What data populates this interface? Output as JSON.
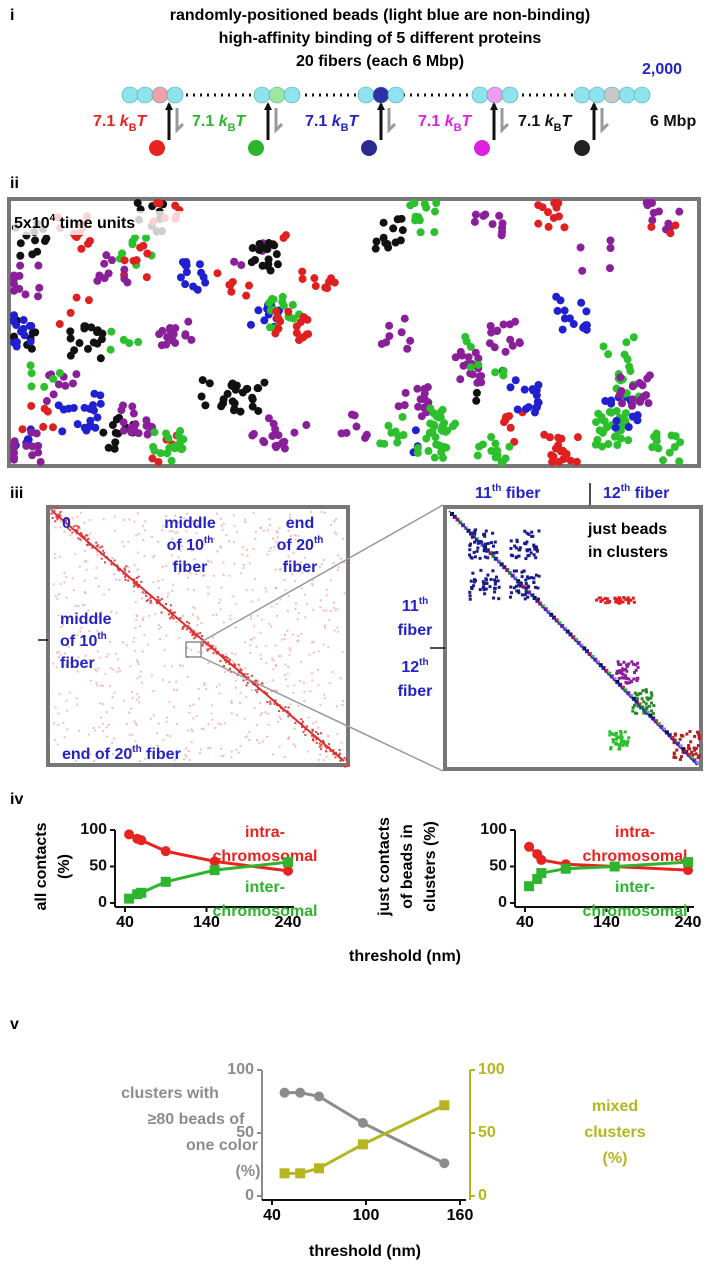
{
  "panels": {
    "i": {
      "letter": "i",
      "title_lines": [
        "randomly-positioned beads (light blue are non-binding)",
        "high-affinity binding of 5 different proteins",
        "20 fibers (each 6 Mbp)"
      ],
      "bead_count": "2,000",
      "energies": [
        {
          "color": "#e8231f",
          "lines": [
            [
              "7.1 ",
              {
                "it": "k"
              },
              {
                "sub": "B"
              },
              {
                "it": "T"
              }
            ]
          ]
        },
        {
          "color": "#2db52d",
          "lines": [
            [
              "7.1 ",
              {
                "it": "k"
              },
              {
                "sub": "B"
              },
              {
                "it": "T"
              }
            ]
          ]
        },
        {
          "color": "#2323c8",
          "lines": [
            [
              "7.1 ",
              {
                "it": "k"
              },
              {
                "sub": "B"
              },
              {
                "it": "T"
              }
            ]
          ]
        },
        {
          "color": "#e020e0",
          "lines": [
            [
              "7.1 ",
              {
                "it": "k"
              },
              {
                "sub": "B"
              },
              {
                "it": "T"
              }
            ]
          ]
        },
        {
          "color": "#111111",
          "lines": [
            [
              "7.1 ",
              {
                "it": "k"
              },
              {
                "sub": "B"
              },
              {
                "it": "T"
              }
            ]
          ]
        }
      ],
      "fiber_length": "6 Mbp"
    },
    "ii": {
      "letter": "ii",
      "time_label": [
        [
          "5x10",
          {
            "sup": "4"
          },
          " time units"
        ]
      ]
    },
    "iii": {
      "letter": "iii",
      "map_labels": {
        "origin": [
          [
            "0"
          ]
        ],
        "top_middle": [
          [
            "middle"
          ],
          [
            "of 10",
            {
              "sup": "th"
            }
          ],
          [
            "fiber"
          ]
        ],
        "top_end": [
          [
            "end"
          ],
          [
            "of 20",
            {
              "sup": "th"
            }
          ],
          [
            "fiber"
          ]
        ],
        "left_middle": [
          [
            "middle"
          ],
          [
            "of 10",
            {
              "sup": "th"
            }
          ],
          [
            "fiber"
          ]
        ],
        "left_end": [
          [
            "end of 20",
            {
              "sup": "th"
            },
            " fiber"
          ]
        ]
      },
      "zoom_labels": {
        "top_11": [
          [
            "11",
            {
              "sup": "th"
            },
            " fiber"
          ]
        ],
        "top_12": [
          [
            "12",
            {
              "sup": "th"
            },
            " fiber"
          ]
        ],
        "left_11": [
          [
            "11",
            {
              "sup": "th"
            }
          ],
          [
            "fiber"
          ]
        ],
        "left_12": [
          [
            "12",
            {
              "sup": "th"
            }
          ],
          [
            "fiber"
          ]
        ],
        "note": [
          [
            "just beads"
          ],
          [
            "in clusters"
          ]
        ]
      }
    },
    "iv": {
      "letter": "iv",
      "x_label": "threshold (nm)"
    },
    "v": {
      "letter": "v",
      "x_label": "threshold (nm)"
    }
  },
  "chart_data": [
    {
      "type": "line",
      "ylabel_lines": [
        "all contacts",
        "(%)"
      ],
      "x": [
        45,
        55,
        60,
        90,
        150,
        240
      ],
      "xlim": [
        40,
        240
      ],
      "xticks": [
        40,
        140,
        240
      ],
      "ylim": [
        0,
        100
      ],
      "yticks": [
        0,
        50,
        100
      ],
      "series": [
        {
          "label_lines": [
            "intra-",
            "chromosomal"
          ],
          "color": "#e8231f",
          "marker": "circle",
          "values": [
            94,
            88,
            86,
            71,
            57,
            44
          ]
        },
        {
          "label_lines": [
            "inter-",
            "chromosomal"
          ],
          "color": "#2db52d",
          "marker": "square",
          "values": [
            6,
            12,
            14,
            29,
            45,
            56
          ]
        }
      ]
    },
    {
      "type": "line",
      "ylabel_lines": [
        "just contacts",
        "of beads in",
        "clusters (%)"
      ],
      "x": [
        45,
        55,
        60,
        90,
        150,
        240
      ],
      "xlim": [
        40,
        240
      ],
      "xticks": [
        40,
        140,
        240
      ],
      "ylim": [
        0,
        100
      ],
      "yticks": [
        0,
        50,
        100
      ],
      "series": [
        {
          "label_lines": [
            "intra-",
            "chromosomal"
          ],
          "color": "#e8231f",
          "marker": "circle",
          "values": [
            77,
            67,
            59,
            53,
            50,
            45
          ]
        },
        {
          "label_lines": [
            "inter-",
            "chromosomal"
          ],
          "color": "#2db52d",
          "marker": "square",
          "values": [
            23,
            33,
            41,
            47,
            50,
            56
          ]
        }
      ]
    },
    {
      "type": "line",
      "ylabel_lines": [
        "clusters with",
        "≥80 beads of",
        "one color",
        "(%)"
      ],
      "y2label_lines": [
        "mixed",
        "clusters",
        "(%)"
      ],
      "x": [
        48,
        58,
        70,
        98,
        150
      ],
      "xlim": [
        40,
        160
      ],
      "xticks": [
        40,
        100,
        160
      ],
      "ylim": [
        0,
        100
      ],
      "yticks": [
        0,
        50,
        100
      ],
      "y2lim": [
        0,
        100
      ],
      "y2ticks": [
        0,
        50,
        100
      ],
      "ycolor": "#8c8c8c",
      "y2color": "#b5b520",
      "series": [
        {
          "color": "#8c8c8c",
          "marker": "circle",
          "values": [
            82,
            82,
            79,
            58,
            26
          ]
        },
        {
          "color": "#b5b520",
          "marker": "square",
          "axis": "y2",
          "values": [
            18,
            18,
            22,
            41,
            72
          ]
        }
      ]
    }
  ]
}
